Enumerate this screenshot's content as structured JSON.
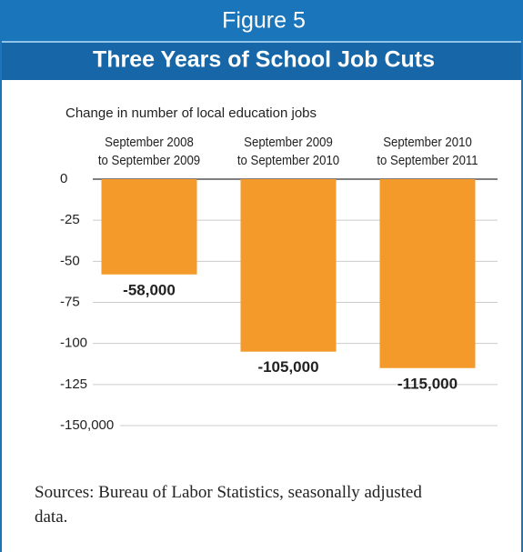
{
  "chart_data": {
    "type": "bar",
    "label": "Figure 5",
    "title": "Three Years of School Job Cuts",
    "y_axis_label": "Change in number of local education jobs",
    "categories": [
      "September 2008\nto September 2009",
      "September 2009\nto September 2010",
      "September 2010\nto September 2011"
    ],
    "values": [
      -58000,
      -105000,
      -115000
    ],
    "value_labels": [
      "-58,000",
      "-105,000",
      "-115,000"
    ],
    "color": "#f39a2b",
    "ylim": [
      -150000,
      0
    ],
    "yticks": [
      0,
      {
        "value": -25000,
        "label": "-25"
      },
      {
        "value": -50000,
        "label": "-50"
      },
      {
        "value": -75000,
        "label": "-75"
      },
      {
        "value": -100000,
        "label": "-100"
      },
      {
        "value": -125000,
        "label": "-125"
      },
      {
        "value": -150000,
        "label": "-150,000"
      }
    ],
    "grid": true,
    "source": "Sources: Bureau of Labor Statistics, seasonally adjusted data."
  }
}
